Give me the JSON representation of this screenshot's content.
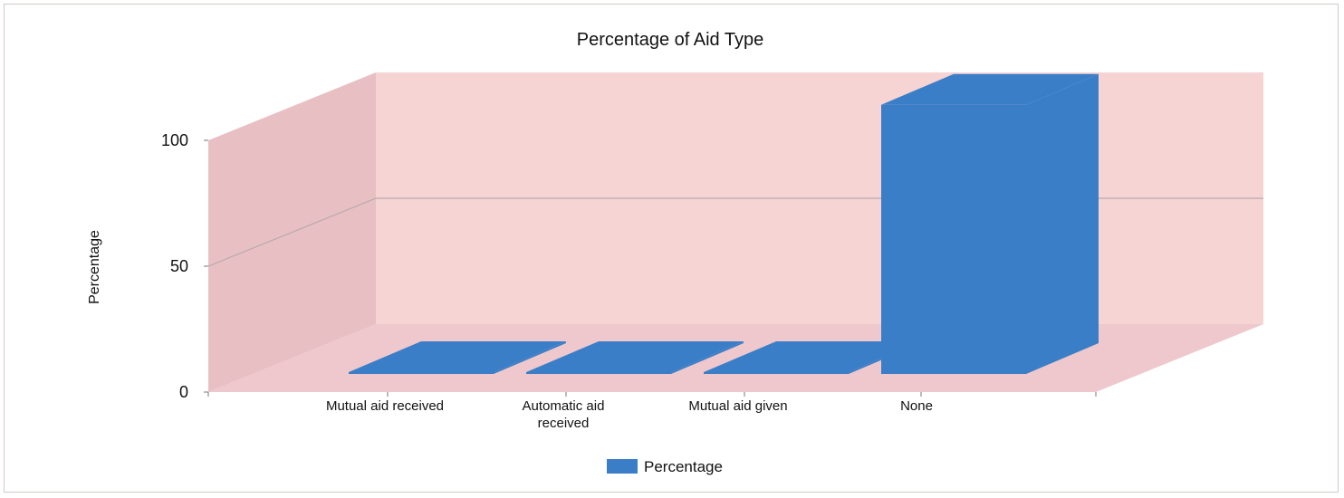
{
  "chart_data": {
    "type": "bar",
    "title": "Percentage of Aid Type",
    "xlabel": "",
    "ylabel": "Percentage",
    "categories": [
      "Mutual aid received",
      "Automatic aid received",
      "Mutual aid given",
      "None"
    ],
    "category_lines": [
      [
        "Mutual aid received"
      ],
      [
        "Automatic aid",
        "received"
      ],
      [
        "Mutual aid given"
      ],
      [
        "None"
      ]
    ],
    "series": [
      {
        "name": "Percentage",
        "values": [
          0.5,
          0.5,
          0.5,
          99
        ]
      }
    ],
    "yticks": [
      0,
      50,
      100
    ],
    "ylim": [
      0,
      100
    ],
    "grid": true,
    "legend_position": "bottom",
    "style": "3d",
    "colors": {
      "bar": "#3b7ec8",
      "wall_back": "#f7d4d4",
      "wall_side": "#e8c0c4",
      "floor": "#eec8cc",
      "gridline": "#b9a8ac",
      "frame": "#d9c6c6"
    }
  }
}
